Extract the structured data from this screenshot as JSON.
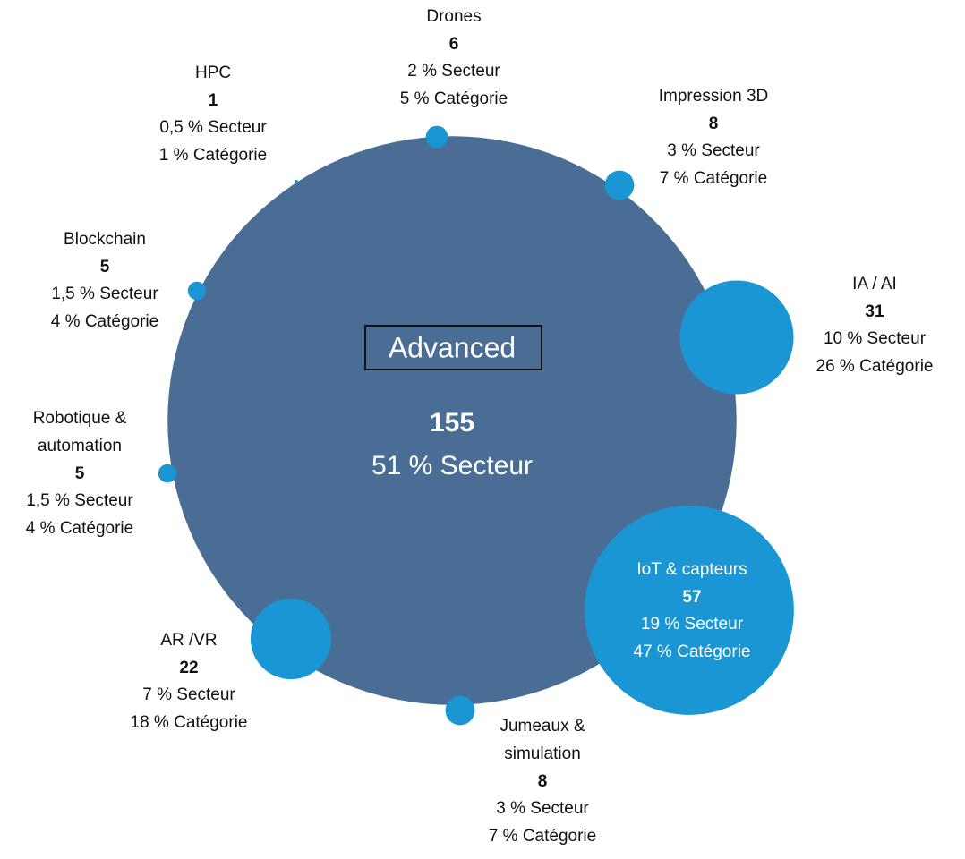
{
  "center": {
    "label": "Advanced",
    "count": 155,
    "secteur": "51 % Secteur"
  },
  "nodes": [
    {
      "label": [
        "HPC"
      ],
      "count": 1,
      "secteur": "0,5 % Secteur",
      "categorie": "1 % Catégorie"
    },
    {
      "label": [
        "Drones"
      ],
      "count": 6,
      "secteur": "2 % Secteur",
      "categorie": "5 % Catégorie"
    },
    {
      "label": [
        "Impression 3D"
      ],
      "count": 8,
      "secteur": "3 % Secteur",
      "categorie": "7 % Catégorie"
    },
    {
      "label": [
        "IA / AI"
      ],
      "count": 31,
      "secteur": "10 % Secteur",
      "categorie": "26 % Catégorie"
    },
    {
      "label": [
        "IoT & capteurs"
      ],
      "count": 57,
      "secteur": "19 % Secteur",
      "categorie": "47 % Catégorie"
    },
    {
      "label": [
        "Jumeaux &",
        "simulation"
      ],
      "count": 8,
      "secteur": "3 % Secteur",
      "categorie": "7 % Catégorie"
    },
    {
      "label": [
        "AR /VR"
      ],
      "count": 22,
      "secteur": "7 % Secteur",
      "categorie": "18 % Catégorie"
    },
    {
      "label": [
        "Robotique &",
        "automation"
      ],
      "count": 5,
      "secteur": "1,5 % Secteur",
      "categorie": "4 % Catégorie"
    },
    {
      "label": [
        "Blockchain"
      ],
      "count": 5,
      "secteur": "1,5 % Secteur",
      "categorie": "4 % Catégorie"
    }
  ]
}
